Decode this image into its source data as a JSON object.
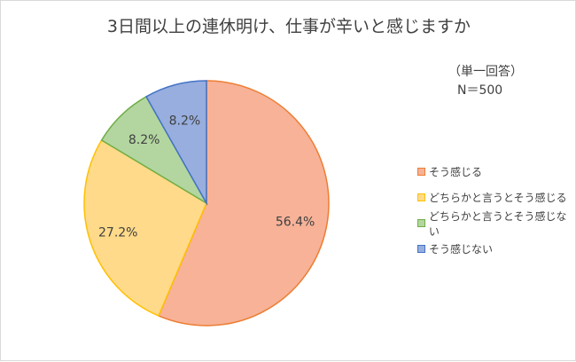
{
  "chart_data": {
    "type": "pie",
    "title": "3日間以上の連休明け、仕事が辛いと感じますか",
    "note_line1": "（単一回答）",
    "note_line2": "N＝500",
    "slices": [
      {
        "label": "そう感じる",
        "value": 56.4,
        "display": "56.4%",
        "fill": "#f7b298",
        "stroke": "#ed7d31"
      },
      {
        "label": "どちらかと言うとそう感じる",
        "value": 27.2,
        "display": "27.2%",
        "fill": "#ffda8a",
        "stroke": "#ffc000"
      },
      {
        "label": "どちらかと言うとそう感じない",
        "value": 8.2,
        "display": "8.2%",
        "fill": "#b3d6a0",
        "stroke": "#70ad47"
      },
      {
        "label": "そう感じない",
        "value": 8.2,
        "display": "8.2%",
        "fill": "#97aedf",
        "stroke": "#4472c4"
      }
    ],
    "legend_position": "right"
  }
}
